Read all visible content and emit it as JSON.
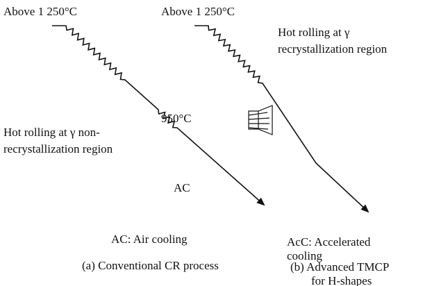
{
  "left": {
    "start_temp": "Above 1 250°C",
    "mid_temp": "950°C",
    "rolling": [
      "Hot rolling at γ non-",
      "recrystallization region"
    ],
    "cooling_mark": "AC",
    "legend": "AC: Air cooling",
    "caption": [
      "(a) Conventional CR process"
    ]
  },
  "right": {
    "start_temp": "Above 1 250°C",
    "rolling": [
      "Hot rolling at γ",
      "recrystallization region"
    ],
    "legend": [
      "AcC: Accelerated",
      "cooling"
    ],
    "caption": [
      "(b) Advanced TMCP",
      "for H-shapes"
    ]
  }
}
